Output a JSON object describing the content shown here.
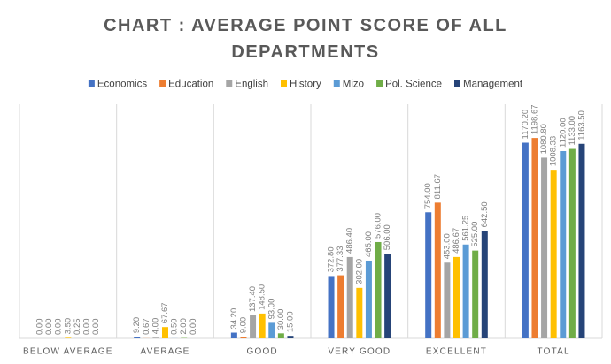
{
  "chart_data": {
    "type": "bar",
    "title": "CHART : AVERAGE POINT SCORE OF ALL DEPARTMENTS",
    "categories": [
      "BELOW AVERAGE",
      "AVERAGE",
      "GOOD",
      "VERY GOOD",
      "EXCELLENT",
      "TOTAL"
    ],
    "series": [
      {
        "name": "Economics",
        "color": "#4472c4",
        "values": [
          0,
          9.2,
          34.2,
          372.8,
          754,
          1170.2
        ],
        "value_labels": [
          "0.00",
          "9.20",
          "34.20",
          "372.80",
          "754.00",
          "1170.20"
        ]
      },
      {
        "name": "Education",
        "color": "#ed7d31",
        "values": [
          0,
          0.67,
          9,
          377.33,
          811.67,
          1198.67
        ],
        "value_labels": [
          "0.00",
          "0.67",
          "9.00",
          "377.33",
          "811.67",
          "1198.67"
        ]
      },
      {
        "name": "English",
        "color": "#a5a5a5",
        "values": [
          0,
          4,
          137.4,
          486.4,
          453,
          1080.8
        ],
        "value_labels": [
          "0.00",
          "4.00",
          "137.40",
          "486.40",
          "453.00",
          "1080.80"
        ]
      },
      {
        "name": "History",
        "color": "#ffc000",
        "values": [
          3.5,
          67.67,
          148.5,
          302,
          486.67,
          1008.33
        ],
        "value_labels": [
          "3.50",
          "67.67",
          "148.50",
          "302.00",
          "486.67",
          "1008.33"
        ]
      },
      {
        "name": "Mizo",
        "color": "#5b9bd5",
        "values": [
          0.25,
          0.5,
          93,
          465,
          561.25,
          1120
        ],
        "value_labels": [
          "0.25",
          "0.50",
          "93.00",
          "465.00",
          "561.25",
          "1120.00"
        ]
      },
      {
        "name": "Pol. Science",
        "color": "#70ad47",
        "values": [
          0,
          2,
          30,
          576,
          525,
          1133
        ],
        "value_labels": [
          "0.00",
          "2.00",
          "30.00",
          "576.00",
          "525.00",
          "1133.00"
        ]
      },
      {
        "name": "Management",
        "color": "#264478",
        "values": [
          0,
          0,
          15,
          506,
          642.5,
          1163.5
        ],
        "value_labels": [
          "0.00",
          "0.00",
          "15.00",
          "506.00",
          "642.50",
          "1163.50"
        ]
      }
    ],
    "ylim": [
      0,
      1400
    ],
    "legend": "top"
  }
}
